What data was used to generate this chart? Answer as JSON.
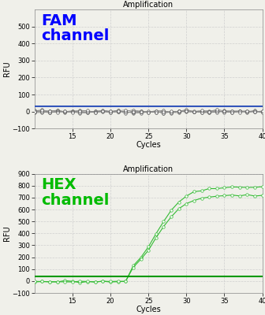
{
  "title": "Amplification",
  "xlabel": "Cycles",
  "ylabel": "RFU",
  "fam": {
    "label": "FAM\nchannel",
    "label_color": "#0000ff",
    "line_color": "#888888",
    "marker_color": "#555555",
    "threshold_color": "#3355bb",
    "threshold_value": 30,
    "ylim": [
      -100,
      600
    ],
    "yticks": [
      -100,
      0,
      100,
      200,
      300,
      400,
      500
    ],
    "num_series": 6,
    "flat_value": 0,
    "noise_amplitude": 5
  },
  "hex": {
    "label": "HEX\nchannel",
    "label_color": "#00bb00",
    "line_color": "#33bb33",
    "marker_color": "#33bb33",
    "threshold_color": "#009900",
    "threshold_value": 40,
    "ylim": [
      -100,
      900
    ],
    "yticks": [
      -100,
      0,
      100,
      200,
      300,
      400,
      500,
      600,
      700,
      800,
      900
    ],
    "num_series": 2,
    "sigmoid_midpoint": 26.0,
    "sigmoid_scale": 1.8,
    "sigmoid_max_values": [
      790,
      720
    ]
  },
  "xlim": [
    10,
    40
  ],
  "xticks": [
    15,
    20,
    25,
    30,
    35,
    40
  ],
  "background_color": "#f0f0ea",
  "grid_color": "#cccccc",
  "title_fontsize": 7,
  "label_fontsize": 7,
  "tick_fontsize": 6,
  "channel_label_fontsize": 14
}
